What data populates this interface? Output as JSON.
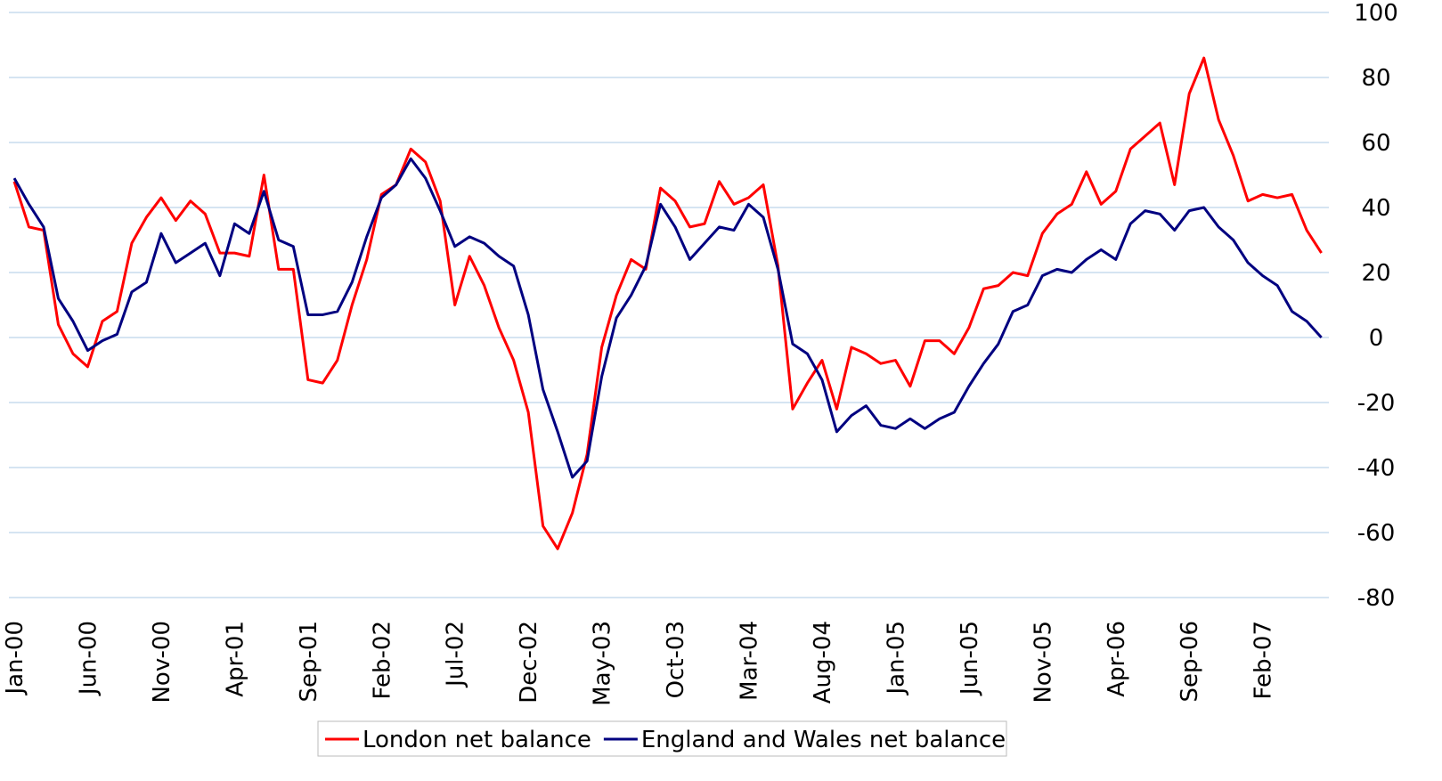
{
  "chart_data": {
    "type": "line",
    "categories": [
      "Jan-00",
      null,
      null,
      null,
      null,
      "Jun-00",
      null,
      null,
      null,
      null,
      "Nov-00",
      null,
      null,
      null,
      null,
      "Apr-01",
      null,
      null,
      null,
      null,
      "Sep-01",
      null,
      null,
      null,
      null,
      "Feb-02",
      null,
      null,
      null,
      null,
      "Jul-02",
      null,
      null,
      null,
      null,
      "Dec-02",
      null,
      null,
      null,
      null,
      "May-03",
      null,
      null,
      null,
      null,
      "Oct-03",
      null,
      null,
      null,
      null,
      "Mar-04",
      null,
      null,
      null,
      null,
      "Aug-04",
      null,
      null,
      null,
      null,
      "Jan-05",
      null,
      null,
      null,
      null,
      "Jun-05",
      null,
      null,
      null,
      null,
      "Nov-05",
      null,
      null,
      null,
      null,
      "Apr-06",
      null,
      null,
      null,
      null,
      "Sep-06",
      null,
      null,
      null,
      null,
      "Feb-07",
      null,
      null,
      null,
      null
    ],
    "series": [
      {
        "name": "London net balance",
        "color": "#ff0000",
        "values": [
          48,
          34,
          33,
          4,
          -5,
          -9,
          5,
          8,
          29,
          37,
          43,
          36,
          42,
          38,
          26,
          26,
          25,
          50,
          21,
          21,
          -13,
          -14,
          -7,
          10,
          24,
          44,
          47,
          58,
          54,
          42,
          10,
          25,
          16,
          3,
          -7,
          -23,
          -58,
          -65,
          -54,
          -36,
          -3,
          13,
          24,
          21,
          46,
          42,
          34,
          35,
          48,
          41,
          43,
          47,
          22,
          -22,
          -14,
          -7,
          -22,
          -3,
          -5,
          -8,
          -7,
          -15,
          -1,
          -1,
          -5,
          3,
          15,
          16,
          20,
          19,
          32,
          38,
          41,
          51,
          41,
          45,
          58,
          62,
          66,
          47,
          75,
          86,
          67,
          56,
          42,
          44,
          43,
          44,
          33,
          26
        ]
      },
      {
        "name": "England and Wales net balance",
        "color": "#000080",
        "values": [
          49,
          41,
          34,
          12,
          5,
          -4,
          -1,
          1,
          14,
          17,
          32,
          23,
          26,
          29,
          19,
          35,
          32,
          45,
          30,
          28,
          7,
          7,
          8,
          17,
          31,
          43,
          47,
          55,
          49,
          39,
          28,
          31,
          29,
          25,
          22,
          7,
          -16,
          -29,
          -43,
          -38,
          -12,
          6,
          13,
          22,
          41,
          34,
          24,
          29,
          34,
          33,
          41,
          37,
          21,
          -2,
          -5,
          -13,
          -29,
          -24,
          -21,
          -27,
          -28,
          -25,
          -28,
          -25,
          -23,
          -15,
          -8,
          -2,
          8,
          10,
          19,
          21,
          20,
          24,
          27,
          24,
          35,
          39,
          38,
          33,
          39,
          40,
          34,
          30,
          23,
          19,
          16,
          8,
          5,
          0
        ]
      }
    ],
    "ylim": [
      -80,
      100
    ],
    "yticks": [
      -80,
      -60,
      -40,
      -20,
      0,
      20,
      40,
      60,
      80,
      100
    ],
    "grid": true,
    "legend": "bottom"
  }
}
